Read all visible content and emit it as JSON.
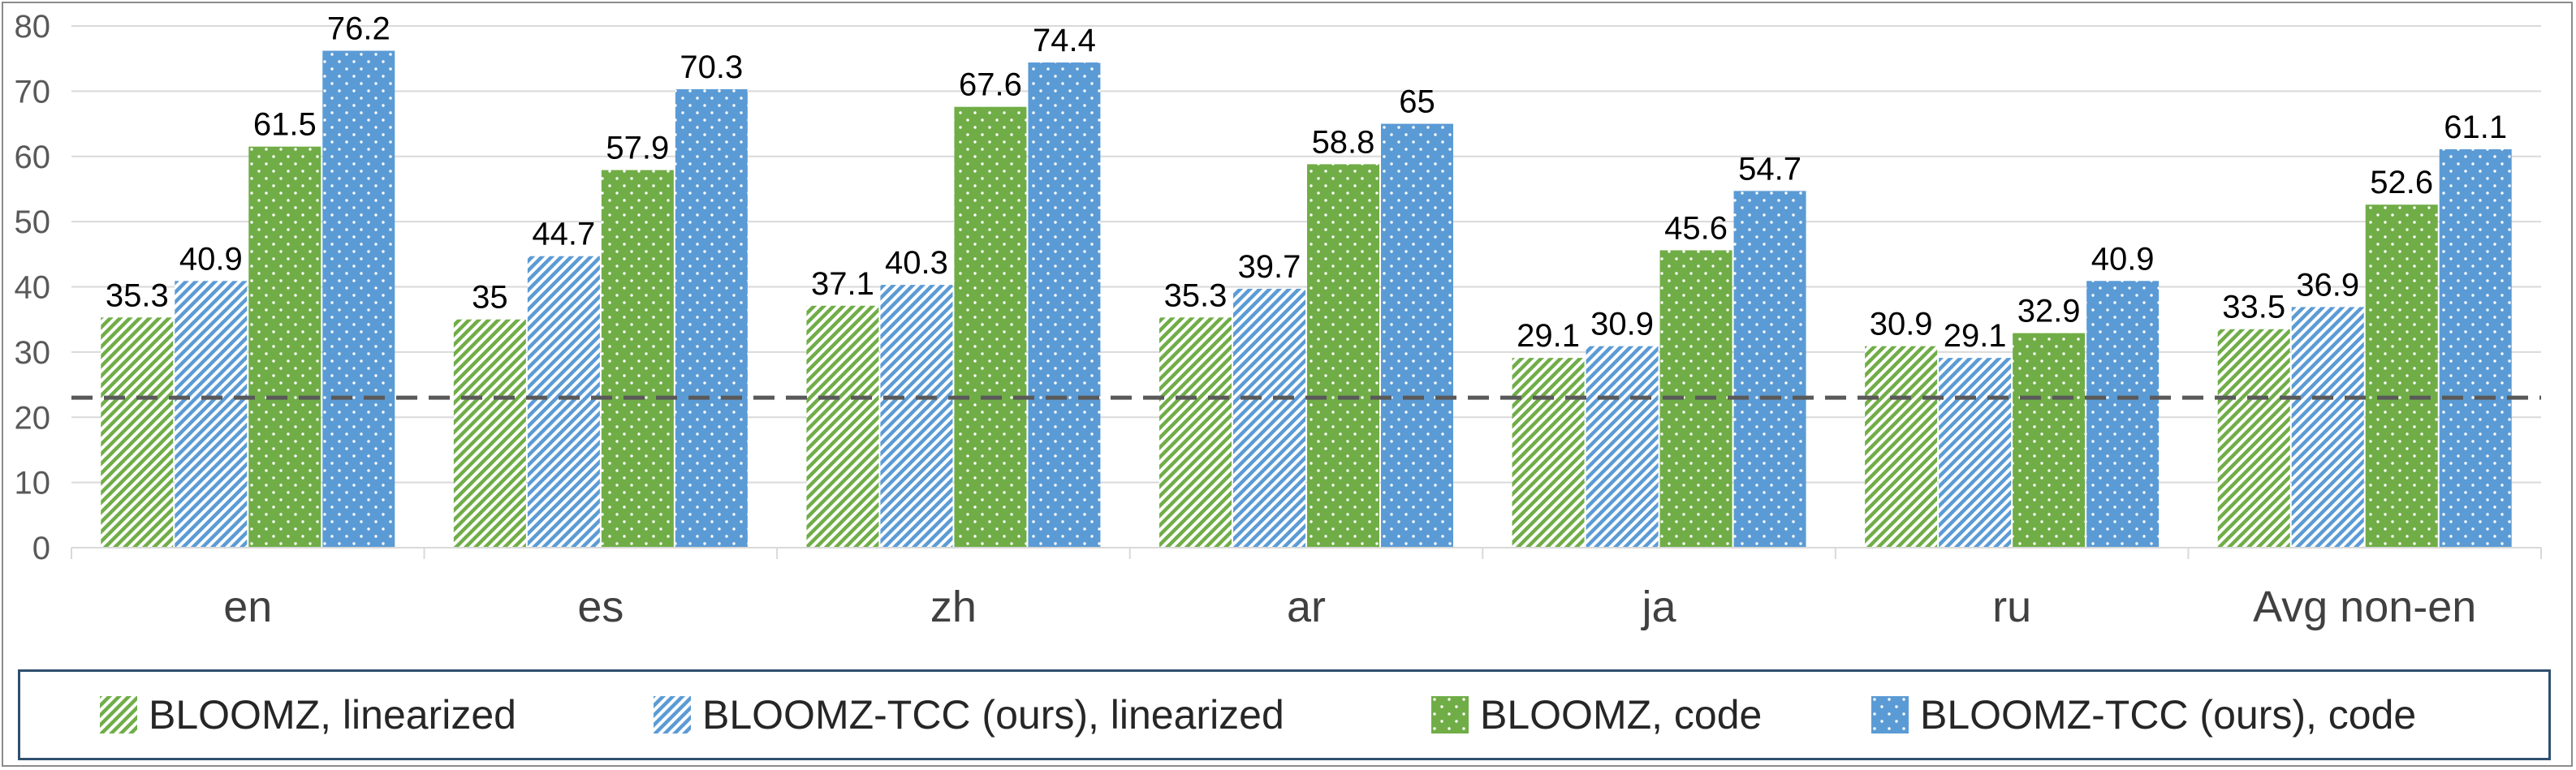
{
  "chart_data": {
    "type": "bar",
    "categories": [
      "en",
      "es",
      "zh",
      "ar",
      "ja",
      "ru",
      "Avg non-en"
    ],
    "series": [
      {
        "name": "BLOOMZ, linearized",
        "values": [
          35.3,
          35,
          37.1,
          35.3,
          29.1,
          30.9,
          33.5
        ],
        "color": "#70ad47",
        "pattern": "diagonal-stripes"
      },
      {
        "name": "BLOOMZ-TCC (ours), linearized",
        "values": [
          40.9,
          44.7,
          40.3,
          39.7,
          30.9,
          29.1,
          36.9
        ],
        "color": "#5b9bd5",
        "pattern": "diagonal-stripes"
      },
      {
        "name": "BLOOMZ, code",
        "values": [
          61.5,
          57.9,
          67.6,
          58.8,
          45.6,
          32.9,
          52.6
        ],
        "color": "#70ad47",
        "pattern": "dots"
      },
      {
        "name": "BLOOMZ-TCC (ours), code",
        "values": [
          76.2,
          70.3,
          74.4,
          65,
          54.7,
          40.9,
          61.1
        ],
        "color": "#5b9bd5",
        "pattern": "dots"
      }
    ],
    "data_labels": [
      [
        "35.3",
        "35",
        "37.1",
        "35.3",
        "29.1",
        "30.9",
        "33.5"
      ],
      [
        "40.9",
        "44.7",
        "40.3",
        "39.7",
        "30.9",
        "29.1",
        "36.9"
      ],
      [
        "61.5",
        "57.9",
        "67.6",
        "58.8",
        "45.6",
        "32.9",
        "52.6"
      ],
      [
        "76.2",
        "70.3",
        "74.4",
        "65",
        "54.7",
        "40.9",
        "61.1"
      ]
    ],
    "ylim": [
      0,
      80
    ],
    "yticks": [
      0,
      10,
      20,
      30,
      40,
      50,
      60,
      70,
      80
    ],
    "reference_line": {
      "value": 23,
      "style": "dashed",
      "color": "#595959"
    },
    "grid": true,
    "legend_position": "bottom"
  }
}
